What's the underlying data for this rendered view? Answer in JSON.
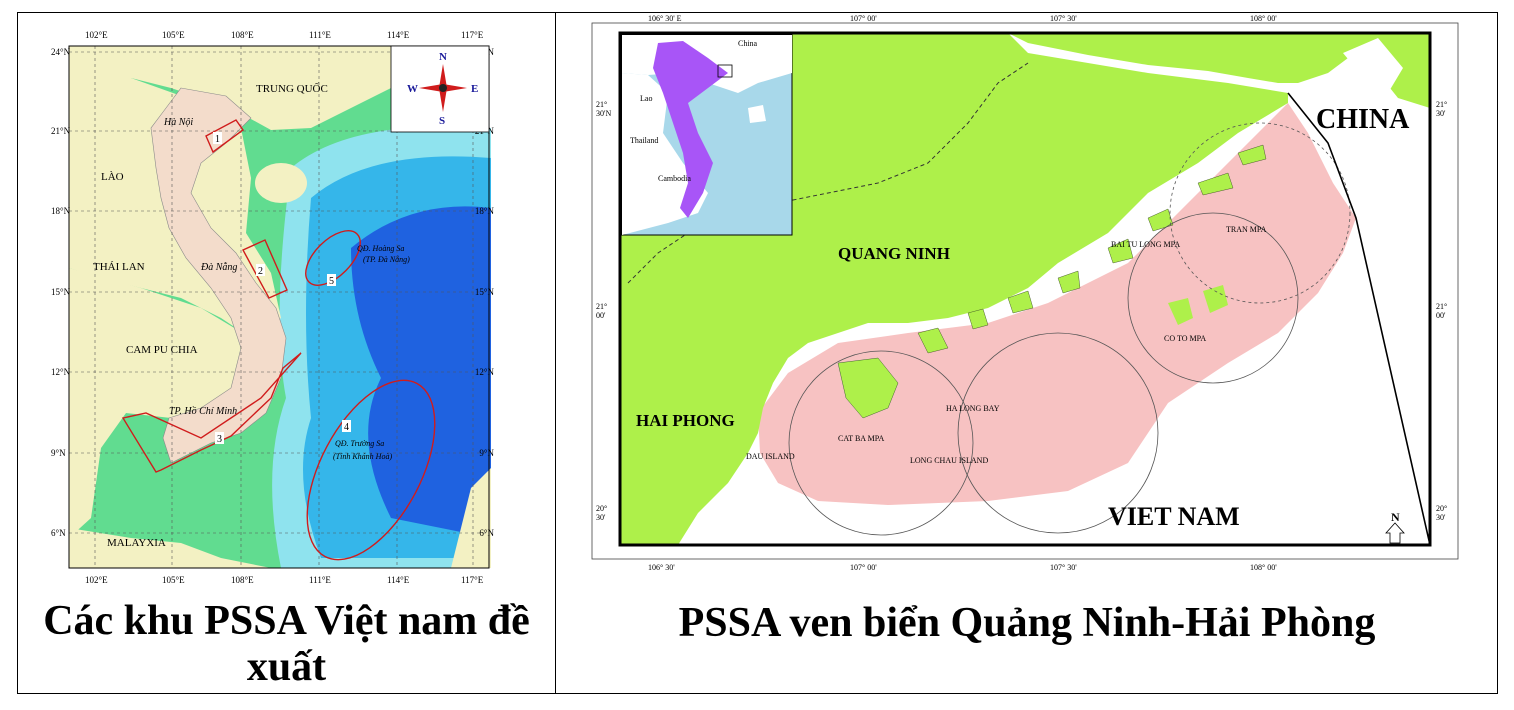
{
  "left_map": {
    "lon_ticks": [
      "102°E",
      "105°E",
      "108°E",
      "111°E",
      "114°E",
      "117°E"
    ],
    "lat_ticks": [
      "24°N",
      "21°N",
      "18°N",
      "15°N",
      "12°N",
      "9°N",
      "6°N"
    ],
    "compass": {
      "n": "N",
      "s": "S",
      "e": "E",
      "w": "W"
    },
    "countries": {
      "china": "TRUNG QUỐC",
      "laos": "LÀO",
      "thailand": "THÁI LAN",
      "cambodia": "CAM PU CHIA",
      "malaysia": "MALAYXIA"
    },
    "cities": {
      "hanoi": "Hà Nội",
      "danang": "Đà Nẵng",
      "hcm": "TP. Hồ Chí Minh"
    },
    "areas": [
      "1",
      "2",
      "3",
      "4",
      "5"
    ],
    "islands": {
      "paracel_1": "QĐ. Hoàng Sa",
      "paracel_2": "(TP. Đà Nẵng)",
      "spratly_1": "QĐ. Trường Sa",
      "spratly_2": "(Tỉnh Khánh Hoà)"
    },
    "colors": {
      "land": "#f3dccb",
      "neighbors": "#f2f2c0",
      "shelf": "#5fdc8c",
      "deep": "#1e5fe0",
      "boundary": "#d01c1c"
    }
  },
  "right_map": {
    "top_ticks": [
      "106° 30' E",
      "107° 00'",
      "107° 30'",
      "108° 00'"
    ],
    "bottom_ticks": [
      "106° 30'",
      "107° 00'",
      "107° 30'",
      "108° 00'"
    ],
    "left_ticks": [
      [
        "21°",
        "30'N"
      ],
      [
        "21°",
        "00'"
      ],
      [
        "20°",
        "30'"
      ]
    ],
    "right_ticks": [
      [
        "21°",
        "30'"
      ],
      [
        "21°",
        "00'"
      ],
      [
        "20°",
        "30'"
      ]
    ],
    "inset_labels": {
      "china": "China",
      "laos": "Lao",
      "thailand": "Thailand",
      "cambodia": "Cambodia"
    },
    "regions": {
      "china": "CHINA",
      "quang_ninh": "QUANG NINH",
      "hai_phong": "HAI PHONG",
      "viet_nam": "VIET NAM"
    },
    "mpas": {
      "bai_tu_long": "BAI TU LONG MPA",
      "tran": "TRAN MPA",
      "co_to": "CO TO MPA",
      "ha_long": "HA LONG BAY",
      "cat_ba": "CAT BA MPA",
      "dau": "DAU ISLAND",
      "long_chau": "LONG CHAU ISLAND"
    },
    "north": "N",
    "colors": {
      "land": "#aef04a",
      "pssa": "#f7c2c2",
      "inset_vn": "#a855f7"
    }
  },
  "captions": {
    "left": "Các khu PSSA Việt nam đề xuất",
    "right": "PSSA ven biển Quảng Ninh-Hải Phòng"
  }
}
